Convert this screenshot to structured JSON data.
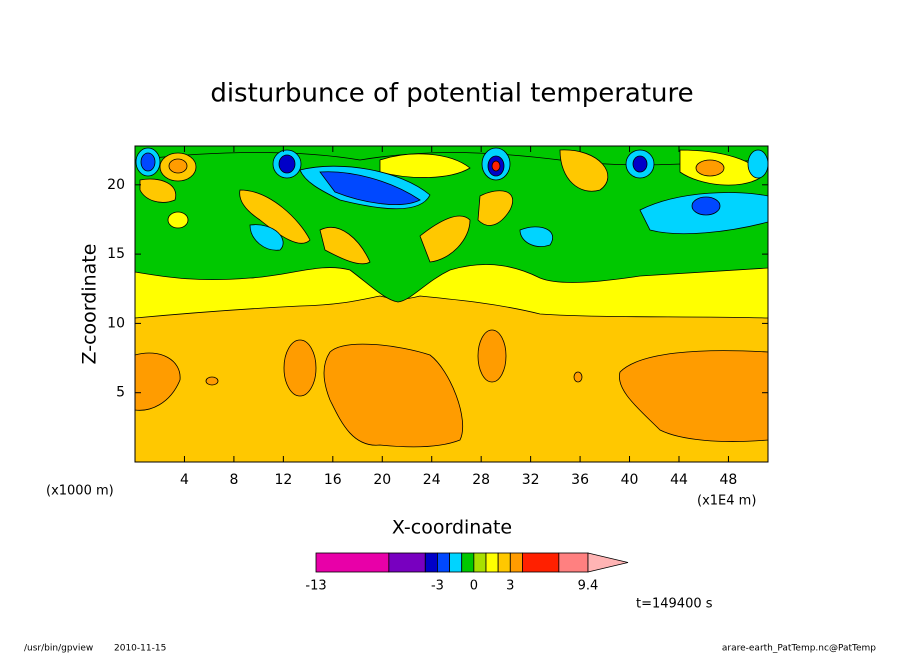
{
  "chart_data": {
    "type": "contour",
    "title": "disturbunce of potential temperature",
    "xlabel": "X-coordinate",
    "ylabel": "Z-coordinate",
    "x_unit_left": "(x1000 m)",
    "x_unit_right": "(x1E4 m)",
    "xlim": [
      0,
      51.2
    ],
    "xticks": [
      4,
      8,
      12,
      16,
      20,
      24,
      28,
      32,
      36,
      40,
      44,
      48
    ],
    "ylim": [
      0,
      22.8
    ],
    "yticks": [
      5,
      10,
      15,
      20
    ],
    "colorbar": {
      "bounds": [
        -13,
        -7,
        -4,
        -3,
        -2,
        -1,
        0,
        1,
        2,
        3,
        4,
        7,
        9.4
      ],
      "colors": [
        "#e800a8",
        "#7800c0",
        "#0000c8",
        "#0048ff",
        "#00d4ff",
        "#00c800",
        "#a8e000",
        "#ffff00",
        "#ffc800",
        "#ff9c00",
        "#ff2000",
        "#ff8080"
      ],
      "extend_color": "#ffb4b4",
      "ticks": [
        -13,
        -3,
        0,
        3,
        9.4
      ]
    },
    "time_label": "t=149400 s",
    "footer_program": "/usr/bin/gpview",
    "footer_date": "2010-11-15",
    "footer_file": "arare-earth_PatTemp.nc@PatTemp"
  }
}
